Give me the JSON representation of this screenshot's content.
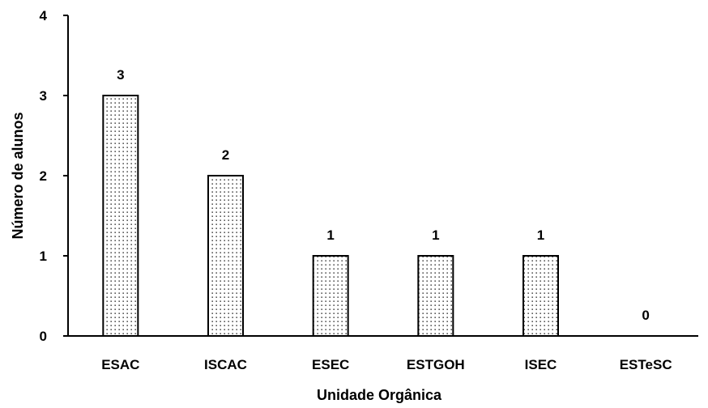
{
  "chart_data": {
    "type": "bar",
    "categories": [
      "ESAC",
      "ISCAC",
      "ESEC",
      "ESTGOH",
      "ISEC",
      "ESTeSC"
    ],
    "values": [
      3,
      2,
      1,
      1,
      1,
      0
    ],
    "data_labels": [
      "3",
      "2",
      "1",
      "1",
      "1",
      "0"
    ],
    "xlabel": "Unidade Orgânica",
    "ylabel": "Número de alunos",
    "ylim": [
      0,
      4
    ],
    "yticks": [
      "0",
      "1",
      "2",
      "3",
      "4"
    ],
    "grid": false,
    "bar_fill": "dotted pattern",
    "colors": {
      "bar_fill": "#ffffff",
      "bar_dots": "#000000",
      "bar_stroke": "#000000",
      "axis": "#000000"
    }
  }
}
